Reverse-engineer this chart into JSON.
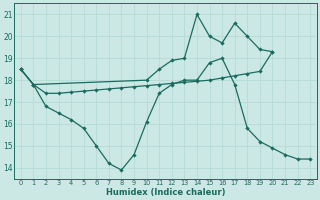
{
  "xlabel": "Humidex (Indice chaleur)",
  "bg_color": "#cce8e4",
  "line_color": "#1a6b60",
  "grid_color": "#b8ddd8",
  "xlim": [
    -0.5,
    23.5
  ],
  "ylim": [
    13.5,
    21.5
  ],
  "yticks": [
    14,
    15,
    16,
    17,
    18,
    19,
    20,
    21
  ],
  "xticks": [
    0,
    1,
    2,
    3,
    4,
    5,
    6,
    7,
    8,
    9,
    10,
    11,
    12,
    13,
    14,
    15,
    16,
    17,
    18,
    19,
    20,
    21,
    22,
    23
  ],
  "line1_x": [
    0,
    1,
    2,
    3,
    4,
    5,
    6,
    7,
    8,
    9,
    10,
    11,
    12,
    13,
    14,
    15,
    16,
    17,
    18,
    19,
    20
  ],
  "line1_y": [
    18.5,
    17.8,
    17.4,
    17.4,
    17.45,
    17.5,
    17.55,
    17.6,
    17.65,
    17.7,
    17.75,
    17.8,
    17.85,
    17.9,
    17.95,
    18.0,
    18.1,
    18.2,
    18.3,
    18.4,
    19.3
  ],
  "line2_x": [
    0,
    1,
    2,
    3,
    4,
    5,
    6,
    7,
    8,
    9,
    10,
    11,
    12,
    13,
    14,
    15,
    16,
    17,
    18,
    19,
    20,
    21,
    22,
    23
  ],
  "line2_y": [
    18.5,
    17.8,
    16.8,
    16.5,
    16.2,
    15.8,
    15.0,
    14.2,
    13.9,
    14.6,
    16.1,
    17.4,
    17.8,
    18.0,
    18.0,
    18.8,
    19.0,
    17.8,
    15.8,
    15.2,
    14.9,
    14.6,
    14.4,
    14.4
  ],
  "line3_x": [
    0,
    1,
    10,
    11,
    12,
    13,
    14,
    15,
    16,
    17,
    18,
    19,
    20
  ],
  "line3_y": [
    18.5,
    17.8,
    18.0,
    18.5,
    18.9,
    19.0,
    21.0,
    20.0,
    19.7,
    20.6,
    20.0,
    19.4,
    19.3
  ]
}
